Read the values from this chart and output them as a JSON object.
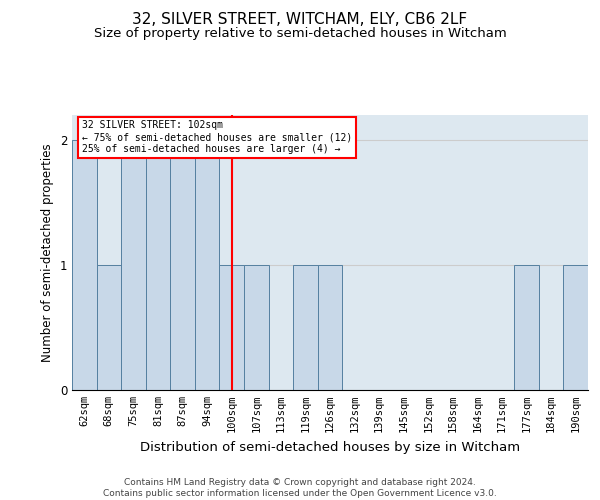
{
  "title": "32, SILVER STREET, WITCHAM, ELY, CB6 2LF",
  "subtitle": "Size of property relative to semi-detached houses in Witcham",
  "xlabel": "Distribution of semi-detached houses by size in Witcham",
  "ylabel": "Number of semi-detached properties",
  "footer_line1": "Contains HM Land Registry data © Crown copyright and database right 2024.",
  "footer_line2": "Contains public sector information licensed under the Open Government Licence v3.0.",
  "categories": [
    "62sqm",
    "68sqm",
    "75sqm",
    "81sqm",
    "87sqm",
    "94sqm",
    "100sqm",
    "107sqm",
    "113sqm",
    "119sqm",
    "126sqm",
    "132sqm",
    "139sqm",
    "145sqm",
    "152sqm",
    "158sqm",
    "164sqm",
    "171sqm",
    "177sqm",
    "184sqm",
    "190sqm"
  ],
  "values": [
    2,
    1,
    2,
    2,
    2,
    2,
    1,
    1,
    0,
    1,
    1,
    0,
    0,
    0,
    0,
    0,
    0,
    0,
    1,
    0,
    1
  ],
  "bar_color": "#c8d8e8",
  "bar_edge_color": "#5580a0",
  "grid_color": "#cccccc",
  "background_color": "#dde8f0",
  "red_line_x": 6,
  "annotation_title": "32 SILVER STREET: 102sqm",
  "annotation_line1": "← 75% of semi-detached houses are smaller (12)",
  "annotation_line2": "25% of semi-detached houses are larger (4) →",
  "ylim": [
    0,
    2.2
  ],
  "yticks": [
    0,
    1,
    2
  ],
  "title_fontsize": 11,
  "subtitle_fontsize": 9.5,
  "tick_fontsize": 7.5,
  "ylabel_fontsize": 8.5,
  "xlabel_fontsize": 9.5,
  "footer_fontsize": 6.5
}
